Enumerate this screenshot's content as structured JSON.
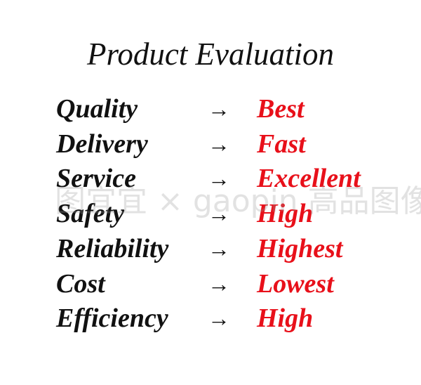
{
  "title": "Product Evaluation",
  "arrow": "→",
  "value_color": "#e8101a",
  "rows": [
    {
      "label": "Quality",
      "value": "Best"
    },
    {
      "label": "Delivery",
      "value": "Fast"
    },
    {
      "label": "Service",
      "value": "Excellent"
    },
    {
      "label": "Safety",
      "value": "High"
    },
    {
      "label": "Reliability",
      "value": "Highest"
    },
    {
      "label": "Cost",
      "value": "Lowest"
    },
    {
      "label": "Efficiency",
      "value": "High"
    }
  ],
  "watermark": "图宜宜 × gaopin 高品图像"
}
